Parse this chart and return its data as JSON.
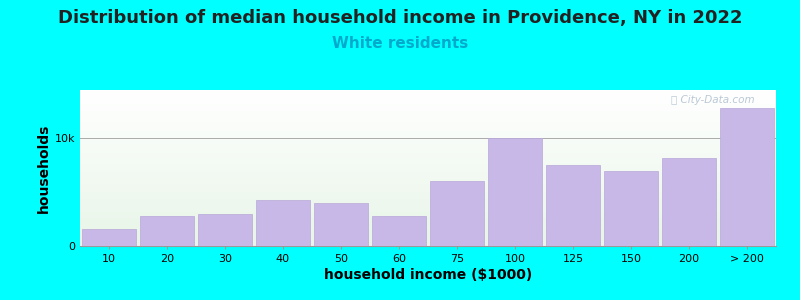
{
  "title": "Distribution of median household income in Providence, NY in 2022",
  "subtitle": "White residents",
  "xlabel": "household income ($1000)",
  "ylabel": "households",
  "background_color": "#00FFFF",
  "plot_bg_top_color": "#e8f5e8",
  "plot_bg_bottom_color": "#ffffff",
  "bar_color": "#c8b8e8",
  "bar_edge_color": "#b8a8d8",
  "categories": [
    "10",
    "20",
    "30",
    "40",
    "50",
    "60",
    "75",
    "100",
    "125",
    "150",
    "200",
    "> 200"
  ],
  "values": [
    1600,
    2800,
    3000,
    4300,
    4000,
    2800,
    6000,
    10000,
    7500,
    7000,
    8200,
    12800
  ],
  "yticks": [
    0,
    10000
  ],
  "ytick_labels": [
    "0",
    "10k"
  ],
  "ylim": [
    0,
    14500
  ],
  "title_fontsize": 13,
  "subtitle_fontsize": 11,
  "subtitle_color": "#00AACC",
  "axis_label_fontsize": 10,
  "tick_fontsize": 8,
  "watermark_text": "ⓘ City-Data.com",
  "watermark_color": "#aabbcc"
}
